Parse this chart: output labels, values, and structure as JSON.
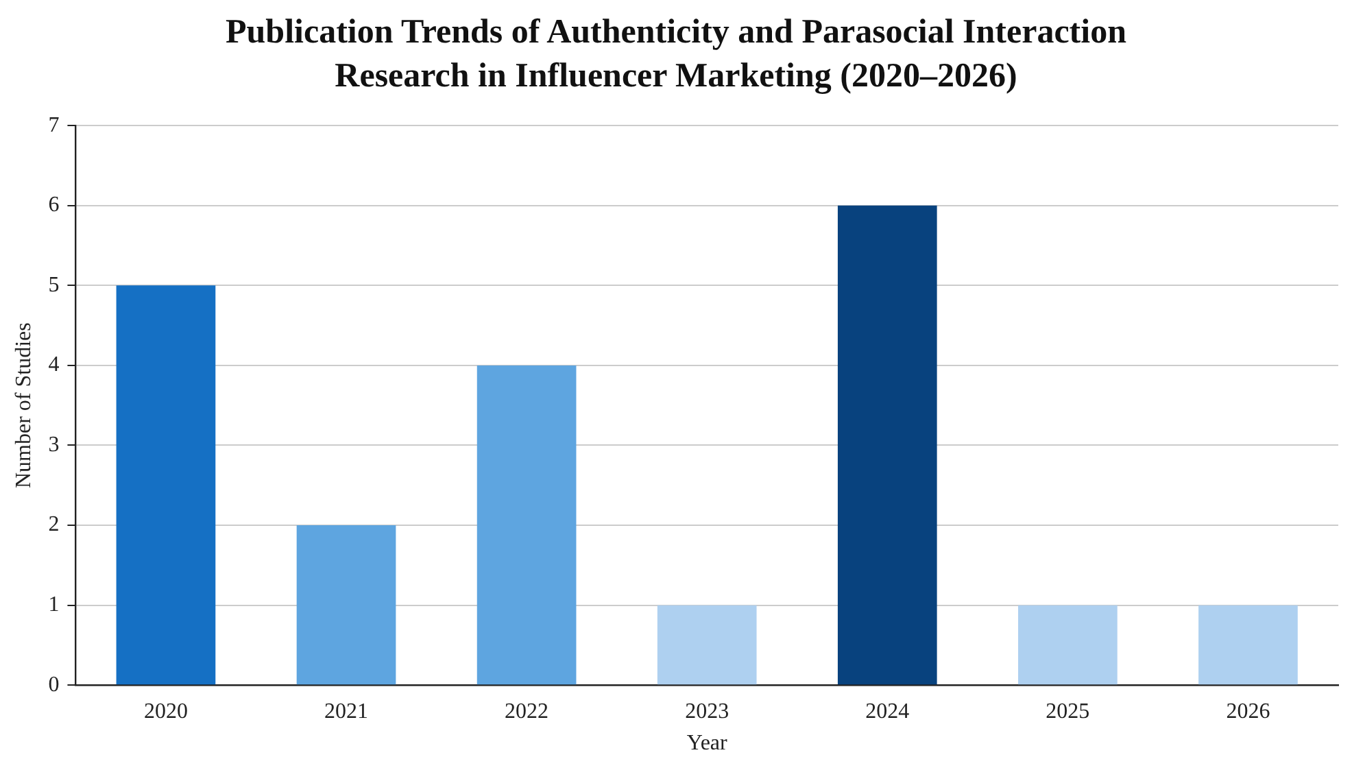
{
  "chart_data": {
    "type": "bar",
    "title": "Publication Trends of Authenticity and Parasocial Interaction Research in Influencer Marketing (2020–2026)",
    "xlabel": "Year",
    "ylabel": "Number of Studies",
    "categories": [
      "2020",
      "2021",
      "2022",
      "2023",
      "2024",
      "2025",
      "2026"
    ],
    "values": [
      5,
      2,
      4,
      1,
      6,
      1,
      1
    ],
    "colors": [
      "#1570c4",
      "#5ea5e0",
      "#5ea5e0",
      "#aed0f0",
      "#08427e",
      "#aed0f0",
      "#aed0f0"
    ],
    "ylim": [
      0,
      7
    ],
    "yticks": [
      0,
      1,
      2,
      3,
      4,
      5,
      6,
      7
    ],
    "grid": "y",
    "legend": false
  }
}
